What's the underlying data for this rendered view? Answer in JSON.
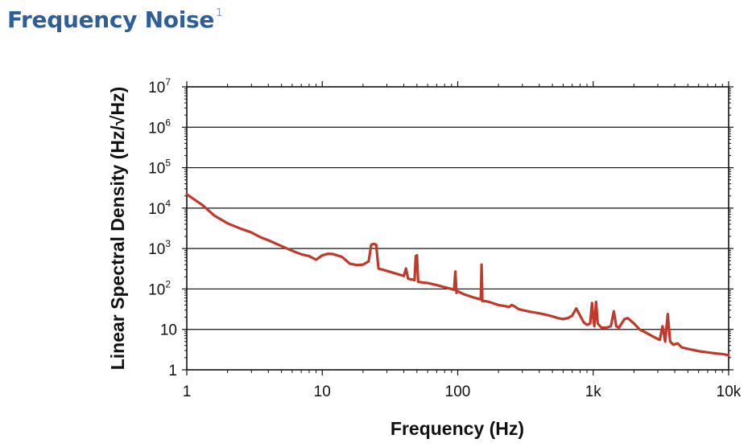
{
  "header": {
    "title": "Frequency Noise",
    "footnote": "1"
  },
  "chart_data": {
    "type": "line",
    "xlabel": "Frequency (Hz)",
    "ylabel": "Linear Spectral Density (Hz/√Hz)",
    "x_scale": "log",
    "y_scale": "log",
    "xlim": [
      1,
      10000
    ],
    "ylim": [
      1,
      10000000
    ],
    "x_ticks": [
      {
        "value": 1,
        "label": "1"
      },
      {
        "value": 10,
        "label": "10"
      },
      {
        "value": 100,
        "label": "100"
      },
      {
        "value": 1000,
        "label": "1k"
      },
      {
        "value": 10000,
        "label": "10k"
      }
    ],
    "y_ticks": [
      {
        "value": 1,
        "base": "1",
        "exp": ""
      },
      {
        "value": 10,
        "base": "10",
        "exp": ""
      },
      {
        "value": 100,
        "base": "10",
        "exp": "2"
      },
      {
        "value": 1000,
        "base": "10",
        "exp": "3"
      },
      {
        "value": 10000,
        "base": "10",
        "exp": "4"
      },
      {
        "value": 100000,
        "base": "10",
        "exp": "5"
      },
      {
        "value": 1000000,
        "base": "10",
        "exp": "6"
      },
      {
        "value": 10000000,
        "base": "10",
        "exp": "7"
      }
    ],
    "grid": "horizontal",
    "line_color": "#c0392b",
    "series": [
      {
        "values": [
          [
            1,
            22000
          ],
          [
            1.3,
            12000
          ],
          [
            1.6,
            6500
          ],
          [
            2,
            4200
          ],
          [
            2.5,
            3100
          ],
          [
            3,
            2500
          ],
          [
            3.5,
            1900
          ],
          [
            4,
            1600
          ],
          [
            5,
            1150
          ],
          [
            6,
            880
          ],
          [
            7,
            720
          ],
          [
            8,
            650
          ],
          [
            9,
            530
          ],
          [
            10,
            680
          ],
          [
            11,
            740
          ],
          [
            12,
            730
          ],
          [
            14,
            620
          ],
          [
            16,
            420
          ],
          [
            18,
            390
          ],
          [
            20,
            400
          ],
          [
            22,
            480
          ],
          [
            23,
            1250
          ],
          [
            24,
            1300
          ],
          [
            25,
            1250
          ],
          [
            26,
            320
          ],
          [
            30,
            280
          ],
          [
            35,
            240
          ],
          [
            40,
            210
          ],
          [
            41.5,
            320
          ],
          [
            43,
            180
          ],
          [
            48,
            165
          ],
          [
            49,
            650
          ],
          [
            50,
            680
          ],
          [
            51,
            150
          ],
          [
            55,
            145
          ],
          [
            60,
            140
          ],
          [
            70,
            125
          ],
          [
            80,
            110
          ],
          [
            90,
            100
          ],
          [
            94,
            95
          ],
          [
            96,
            270
          ],
          [
            98,
            80
          ],
          [
            100,
            88
          ],
          [
            110,
            75
          ],
          [
            120,
            68
          ],
          [
            130,
            62
          ],
          [
            140,
            58
          ],
          [
            148,
            55
          ],
          [
            150,
            400
          ],
          [
            152,
            50
          ],
          [
            160,
            50
          ],
          [
            170,
            48
          ],
          [
            180,
            45
          ],
          [
            200,
            40
          ],
          [
            220,
            38
          ],
          [
            240,
            36
          ],
          [
            250,
            40
          ],
          [
            260,
            38
          ],
          [
            280,
            32
          ],
          [
            300,
            30
          ],
          [
            350,
            27
          ],
          [
            400,
            25
          ],
          [
            450,
            23
          ],
          [
            500,
            21
          ],
          [
            550,
            19
          ],
          [
            600,
            18
          ],
          [
            650,
            19
          ],
          [
            700,
            22
          ],
          [
            750,
            33
          ],
          [
            800,
            22
          ],
          [
            850,
            15
          ],
          [
            900,
            13
          ],
          [
            950,
            14
          ],
          [
            980,
            45
          ],
          [
            1000,
            20
          ],
          [
            1020,
            12
          ],
          [
            1050,
            48
          ],
          [
            1080,
            14
          ],
          [
            1150,
            11
          ],
          [
            1250,
            11
          ],
          [
            1350,
            12
          ],
          [
            1420,
            28
          ],
          [
            1480,
            12
          ],
          [
            1550,
            11
          ],
          [
            1700,
            18
          ],
          [
            1800,
            19
          ],
          [
            2000,
            14
          ],
          [
            2200,
            10
          ],
          [
            2500,
            8
          ],
          [
            2800,
            6.5
          ],
          [
            3100,
            5.5
          ],
          [
            3250,
            12
          ],
          [
            3400,
            5
          ],
          [
            3550,
            24
          ],
          [
            3700,
            5
          ],
          [
            3900,
            4.2
          ],
          [
            4200,
            4.5
          ],
          [
            4500,
            3.6
          ],
          [
            5000,
            3.3
          ],
          [
            6000,
            2.9
          ],
          [
            7000,
            2.7
          ],
          [
            8000,
            2.55
          ],
          [
            9000,
            2.45
          ],
          [
            10000,
            2.3
          ]
        ]
      }
    ]
  }
}
